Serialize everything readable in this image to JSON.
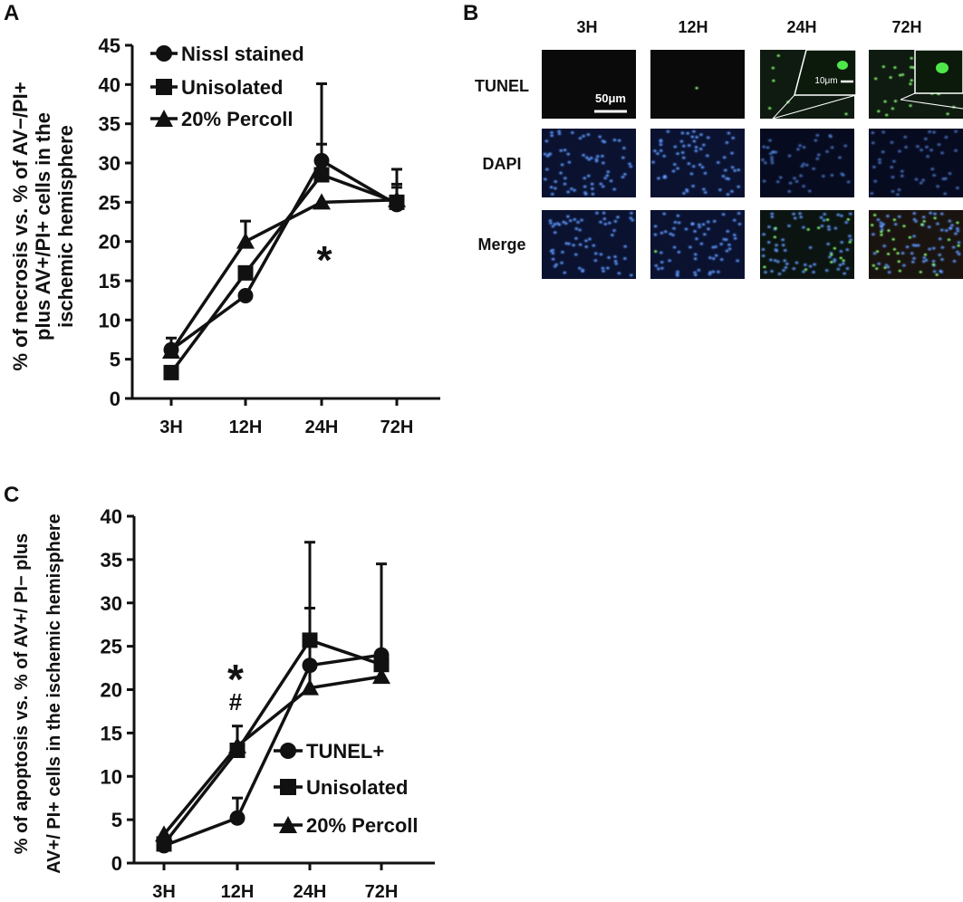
{
  "panel_labels": {
    "a": "A",
    "b": "B",
    "c": "C"
  },
  "legend_a": [
    "Nissl stained",
    "Unisolated",
    "20% Percoll"
  ],
  "legend_c": [
    "TUNEL+",
    "Unisolated",
    "20% Percoll"
  ],
  "colors": {
    "line": "#111111",
    "dapi": "#1a5fd0",
    "tunel": "#3fd13f",
    "merge_red": "#6a2a20"
  },
  "chart_data": [
    {
      "type": "line",
      "ylabel_line1": "% of necrosis vs. % of AV−/PI+",
      "ylabel_line2": "plus AV+/PI+ cells in the",
      "ylabel_line3": "ischemic hemisphere",
      "xlabel": "",
      "categories": [
        "3H",
        "12H",
        "24H",
        "72H"
      ],
      "ylim": [
        0,
        45
      ],
      "yticks": [
        0,
        5,
        10,
        15,
        20,
        25,
        30,
        35,
        40,
        45
      ],
      "series": [
        {
          "name": "Nissl stained",
          "marker": "circle",
          "values": [
            6.2,
            13.1,
            30.3,
            24.7
          ],
          "err": [
            1.5,
            0,
            9.8,
            2.2
          ]
        },
        {
          "name": "Unisolated",
          "marker": "square",
          "values": [
            3.3,
            16.0,
            28.5,
            25.0
          ],
          "err": [
            0,
            0,
            3.9,
            4.2
          ]
        },
        {
          "name": "20% Percoll",
          "marker": "triangle",
          "values": [
            6.0,
            20.0,
            25.0,
            25.3
          ],
          "err": [
            0,
            2.6,
            0,
            2.0
          ]
        }
      ],
      "annotations": [
        {
          "text": "*",
          "category": "24H"
        }
      ]
    },
    {
      "type": "line",
      "ylabel_line1": "% of apoptosis vs. % of AV+/ PI− plus",
      "ylabel_line2": "AV+/ PI+ cells in the ischemic hemisphere",
      "xlabel": "",
      "categories": [
        "3H",
        "12H",
        "24H",
        "72H"
      ],
      "ylim": [
        0,
        40
      ],
      "yticks": [
        0,
        5,
        10,
        15,
        20,
        25,
        30,
        35,
        40
      ],
      "series": [
        {
          "name": "TUNEL+",
          "marker": "circle",
          "values": [
            2.0,
            5.2,
            22.8,
            24.0
          ],
          "err": [
            0,
            2.3,
            0,
            0
          ]
        },
        {
          "name": "Unisolated",
          "marker": "square",
          "values": [
            2.2,
            13.0,
            25.7,
            22.9
          ],
          "err": [
            0,
            0,
            11.3,
            11.6
          ]
        },
        {
          "name": "20% Percoll",
          "marker": "triangle",
          "values": [
            3.3,
            13.5,
            20.2,
            21.5
          ],
          "err": [
            0,
            2.3,
            9.2,
            0
          ]
        }
      ],
      "annotations": [
        {
          "text": "*",
          "category": "12H"
        },
        {
          "text": "#",
          "category": "12H"
        }
      ]
    }
  ],
  "micrographs": {
    "columns": [
      "3H",
      "12H",
      "24H",
      "72H"
    ],
    "rows": [
      "TUNEL",
      "DAPI",
      "Merge"
    ],
    "scale_bar": "50μm",
    "inset_scale_bar": "10μm"
  }
}
